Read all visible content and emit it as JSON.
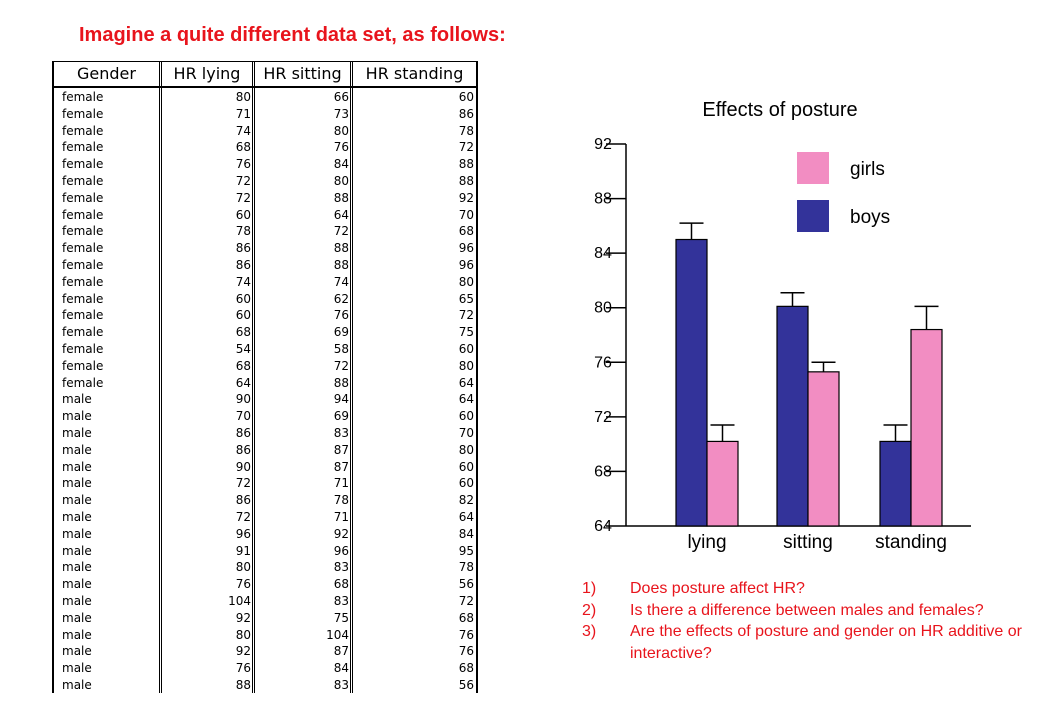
{
  "heading": "Imagine a quite different data set, as follows:",
  "table": {
    "headers": [
      "Gender",
      "HR lying",
      "HR sitting",
      "HR standing"
    ],
    "rows": [
      [
        "female",
        "80",
        "66",
        "60"
      ],
      [
        "female",
        "71",
        "73",
        "86"
      ],
      [
        "female",
        "74",
        "80",
        "78"
      ],
      [
        "female",
        "68",
        "76",
        "72"
      ],
      [
        "female",
        "76",
        "84",
        "88"
      ],
      [
        "female",
        "72",
        "80",
        "88"
      ],
      [
        "female",
        "72",
        "88",
        "92"
      ],
      [
        "female",
        "60",
        "64",
        "70"
      ],
      [
        "female",
        "78",
        "72",
        "68"
      ],
      [
        "female",
        "86",
        "88",
        "96"
      ],
      [
        "female",
        "86",
        "88",
        "96"
      ],
      [
        "female",
        "74",
        "74",
        "80"
      ],
      [
        "female",
        "60",
        "62",
        "65"
      ],
      [
        "female",
        "60",
        "76",
        "72"
      ],
      [
        "female",
        "68",
        "69",
        "75"
      ],
      [
        "female",
        "54",
        "58",
        "60"
      ],
      [
        "female",
        "68",
        "72",
        "80"
      ],
      [
        "female",
        "64",
        "88",
        "64"
      ],
      [
        "male",
        "90",
        "94",
        "64"
      ],
      [
        "male",
        "70",
        "69",
        "60"
      ],
      [
        "male",
        "86",
        "83",
        "70"
      ],
      [
        "male",
        "86",
        "87",
        "80"
      ],
      [
        "male",
        "90",
        "87",
        "60"
      ],
      [
        "male",
        "72",
        "71",
        "60"
      ],
      [
        "male",
        "86",
        "78",
        "82"
      ],
      [
        "male",
        "72",
        "71",
        "64"
      ],
      [
        "male",
        "96",
        "92",
        "84"
      ],
      [
        "male",
        "91",
        "96",
        "95"
      ],
      [
        "male",
        "80",
        "83",
        "78"
      ],
      [
        "male",
        "76",
        "68",
        "56"
      ],
      [
        "male",
        "104",
        "83",
        "72"
      ],
      [
        "male",
        "92",
        "75",
        "68"
      ],
      [
        "male",
        "80",
        "104",
        "76"
      ],
      [
        "male",
        "92",
        "87",
        "76"
      ],
      [
        "male",
        "76",
        "84",
        "68"
      ],
      [
        "male",
        "88",
        "83",
        "56"
      ]
    ]
  },
  "chart_data": {
    "type": "bar",
    "title": "Effects of posture",
    "categories": [
      "lying",
      "sitting",
      "standing"
    ],
    "series": [
      {
        "name": "boys",
        "color": "#33339a",
        "values": [
          85,
          80.1,
          70.2
        ],
        "error_upper": [
          86.2,
          81.1,
          71.4
        ]
      },
      {
        "name": "girls",
        "color": "#f28dc2",
        "values": [
          70.2,
          75.3,
          78.4
        ],
        "error_upper": [
          71.4,
          76.0,
          80.1
        ]
      }
    ],
    "yticks": [
      "64",
      "68",
      "72",
      "76",
      "80",
      "84",
      "88",
      "92"
    ],
    "ylim": [
      64,
      92
    ],
    "legend_position": "top-right",
    "grid": false
  },
  "questions": [
    {
      "num": "1)",
      "text": "Does posture affect HR?"
    },
    {
      "num": "2)",
      "text": "Is there a difference between males and females?"
    },
    {
      "num": "3)",
      "text": "Are the effects of posture and gender on HR additive or interactive?"
    }
  ]
}
